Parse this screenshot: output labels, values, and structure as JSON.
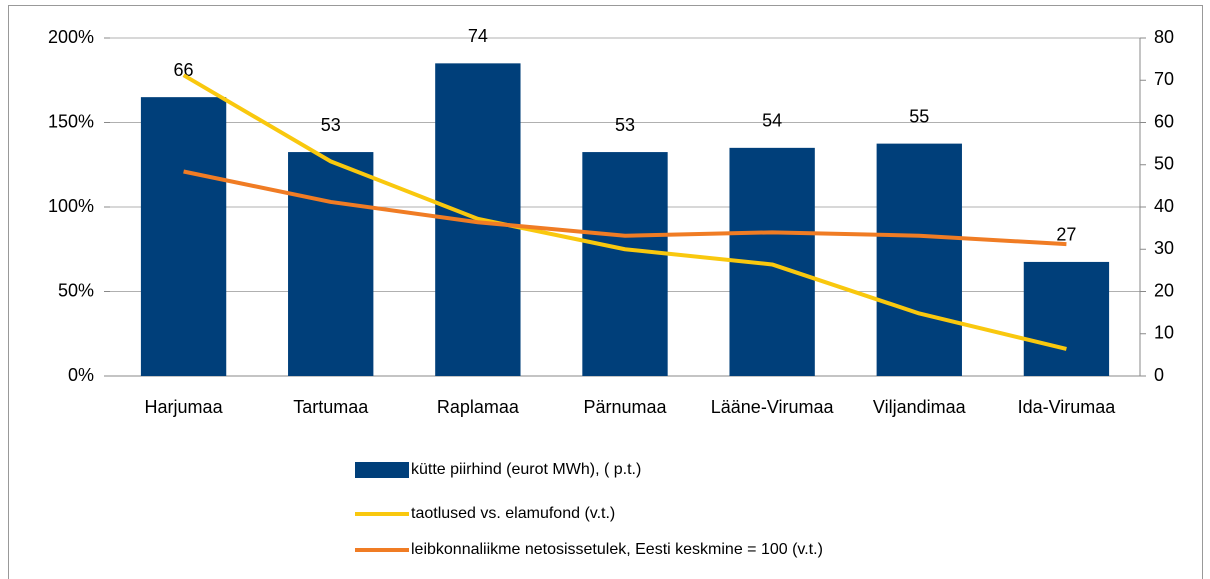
{
  "chart_data": {
    "type": "bar",
    "categories": [
      "Harjumaa",
      "Tartumaa",
      "Raplamaa",
      "Pärnumaa",
      "Lääne-Virumaa",
      "Viljandimaa",
      "Ida-Virumaa"
    ],
    "series": [
      {
        "name": "kütte piirhind (eurot MWh), ( p.t.)",
        "type": "bar",
        "axis": "y2",
        "color": "#003f7a",
        "values": [
          66,
          53,
          74,
          53,
          54,
          55,
          27
        ]
      },
      {
        "name": "taotlused vs. elamufond (v.t.)",
        "type": "line",
        "axis": "y",
        "color": "#f9c80e",
        "values": [
          178,
          127,
          93,
          75,
          66,
          37,
          16
        ]
      },
      {
        "name": "leibkonnaliikme netosissetulek, Eesti keskmine = 100 (v.t.)",
        "type": "line",
        "axis": "y",
        "color": "#f07c24",
        "values": [
          121,
          103,
          91,
          83,
          85,
          83,
          78
        ]
      }
    ],
    "ylim": [
      0,
      200
    ],
    "yticks": [
      {
        "value": 0,
        "label": "0%"
      },
      {
        "value": 50,
        "label": "50%"
      },
      {
        "value": 100,
        "label": "100%"
      },
      {
        "value": 150,
        "label": "150%"
      },
      {
        "value": 200,
        "label": "200%"
      }
    ],
    "y2lim": [
      0,
      80
    ],
    "y2ticks": [
      0,
      10,
      20,
      30,
      40,
      50,
      60,
      70,
      80
    ],
    "grid": true,
    "legend": "bottom"
  }
}
